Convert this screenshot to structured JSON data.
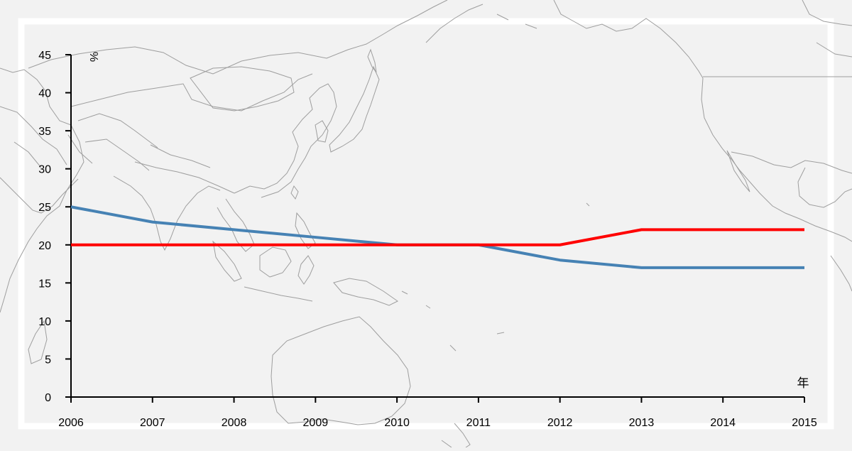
{
  "colors": {
    "background": "#f2f2f2",
    "frame": "#ffffff",
    "map_outline": "#9e9e9e",
    "axis": "#000000"
  },
  "chart_data": {
    "type": "line",
    "title": "",
    "xlabel": "年",
    "ylabel": "%",
    "x": [
      2006,
      2007,
      2008,
      2009,
      2010,
      2011,
      2012,
      2013,
      2014,
      2015
    ],
    "x_ticks": [
      "2006",
      "2007",
      "2008",
      "2009",
      "2010",
      "2011",
      "2012",
      "2013",
      "2014",
      "2015"
    ],
    "y_ticks": [
      "0",
      "5",
      "10",
      "15",
      "20",
      "25",
      "30",
      "35",
      "40",
      "45"
    ],
    "xlim": [
      2006,
      2015
    ],
    "ylim": [
      0,
      45
    ],
    "grid": false,
    "legend": "none",
    "series": [
      {
        "color": "#4682b4",
        "values": [
          25,
          23,
          22,
          21,
          20,
          20,
          18,
          17,
          17,
          17
        ]
      },
      {
        "color": "#ff0000",
        "values": [
          20,
          20,
          20,
          20,
          20,
          20,
          20,
          22,
          22,
          22
        ]
      }
    ]
  }
}
